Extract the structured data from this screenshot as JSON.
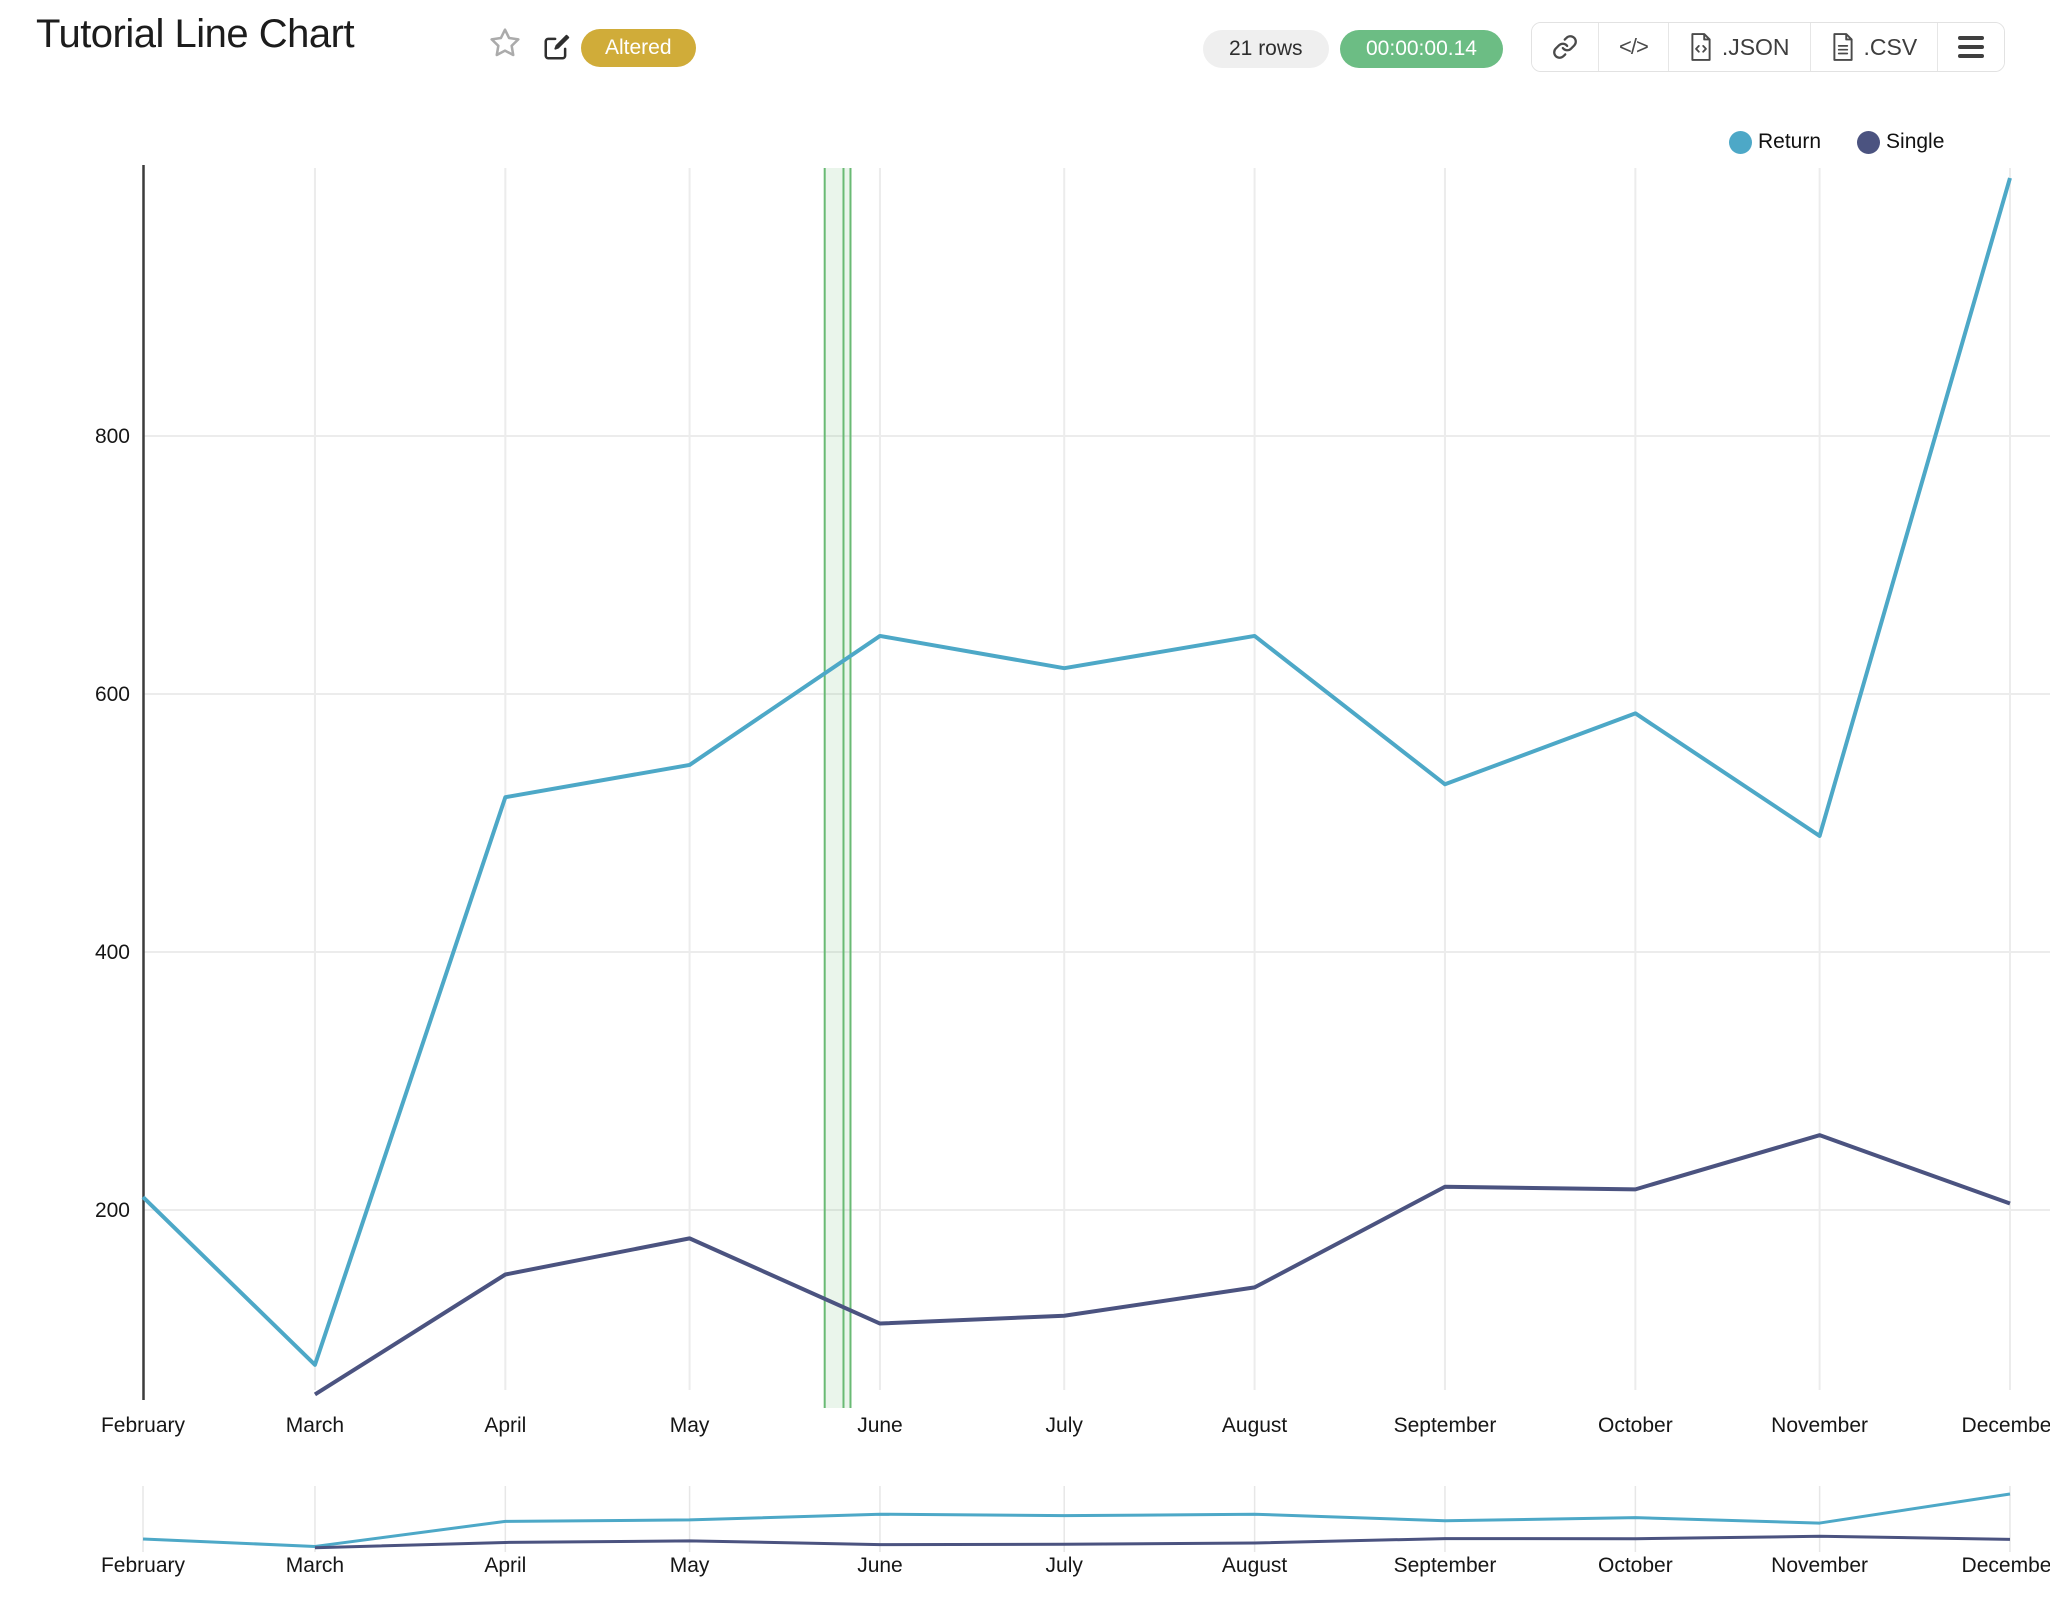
{
  "header": {
    "title": "Tutorial Line Chart",
    "status_badge": "Altered"
  },
  "result_bar": {
    "rows_badge": "21 rows",
    "runtime_badge": "00:00:00.14"
  },
  "toolbar": {
    "export_json_label": ".JSON",
    "export_csv_label": ".CSV",
    "embed_glyph": "</>"
  },
  "icons": {
    "favorite": "star-outline",
    "edit": "pencil-square",
    "share_link": "chain-link",
    "embed": "code-brackets",
    "export_json": "file-code",
    "export_csv": "file-lines",
    "menu": "hamburger"
  },
  "colors": {
    "status_gold": "#D0AC39",
    "runtime_green": "#6CBD84",
    "rows_pill_gray": "#EFEFEF",
    "grid": "#ECECEC",
    "axis": "#3C3C3C",
    "highlight_band": "#69BA74"
  },
  "chart_data": {
    "type": "line",
    "x_type": "time",
    "title": "Tutorial Line Chart",
    "categories": [
      "February",
      "March",
      "April",
      "May",
      "June",
      "July",
      "August",
      "September",
      "October",
      "November",
      "December"
    ],
    "x_day_offsets": [
      0,
      28,
      59,
      89,
      120,
      150,
      181,
      212,
      243,
      273,
      304
    ],
    "series": [
      {
        "name": "Return",
        "color": "#4DA8C7",
        "values": [
          210,
          80,
          520,
          545,
          645,
          620,
          645,
          530,
          585,
          490,
          1000
        ]
      },
      {
        "name": "Single",
        "color": "#4B5380",
        "values": [
          null,
          57,
          150,
          178,
          112,
          118,
          140,
          218,
          216,
          258,
          205
        ]
      }
    ],
    "y_ticks": [
      200,
      400,
      600,
      800
    ],
    "ylim": [
      60,
      1005
    ],
    "grid": true,
    "legend_position": "top-right",
    "highlight_band": {
      "from_day": 111,
      "to_day": 115.2,
      "color": "#69BA74"
    },
    "subchart": true
  }
}
